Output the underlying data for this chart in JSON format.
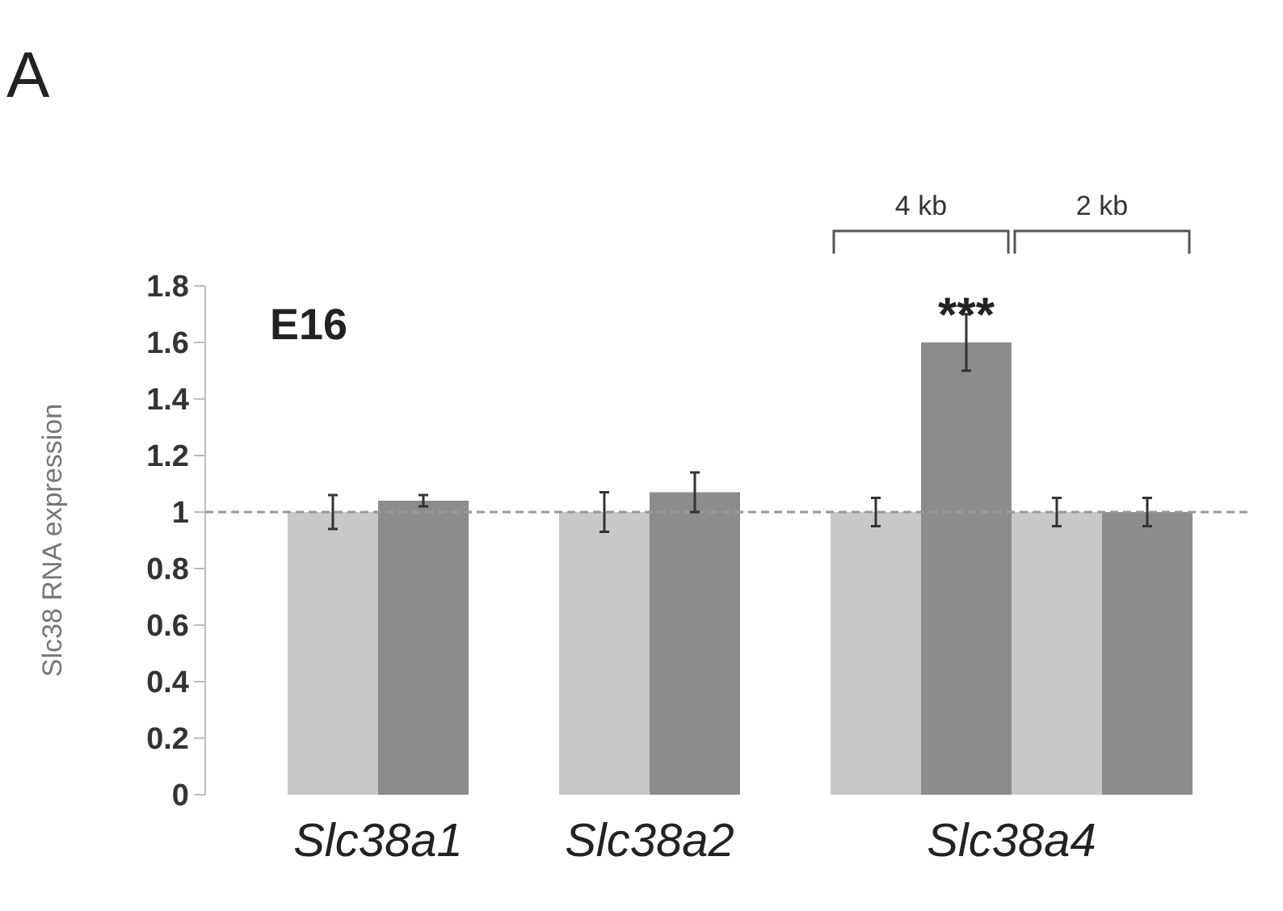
{
  "chart_data": {
    "type": "bar",
    "ylabel": "Slc38 RNA expression",
    "categories": [
      "Slc38a1",
      "Slc38a2",
      "4 kb",
      "2 kb"
    ],
    "series": [
      {
        "color": "#c8c8c8",
        "values": [
          1,
          1,
          1,
          1
        ],
        "errors": [
          0.06,
          0.07,
          0.05,
          0.05
        ]
      },
      {
        "color": "#8c8c8c",
        "values": [
          1.04,
          1.07,
          1.6,
          1.0
        ],
        "errors": [
          0.02,
          0.07,
          0.1,
          0.05
        ]
      }
    ],
    "ylim": [
      0,
      1.8
    ],
    "yticks": [
      0,
      0.2,
      0.4,
      0.6,
      0.8,
      1,
      1.2,
      1.4,
      1.6,
      1.8
    ],
    "grid": false,
    "ref_lines": [
      {
        "axis": "y",
        "value": 1,
        "color": "#999999",
        "line_style": "dashed"
      }
    ],
    "annotations": [
      "A",
      "E16",
      "***",
      "Slc38a4"
    ]
  }
}
